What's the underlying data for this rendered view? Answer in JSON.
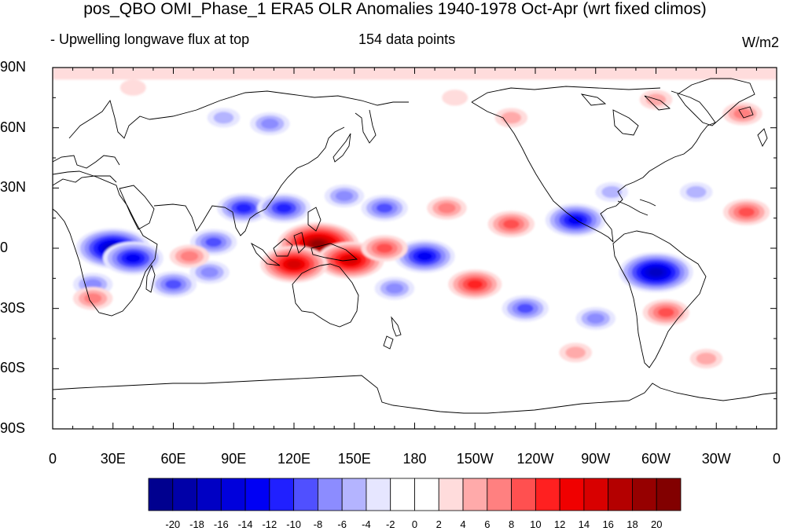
{
  "title": "pos_QBO OMI_Phase_1 ERA5 OLR Anomalies 1940-1978 Oct-Apr (wrt fixed climos)",
  "subtitle_left": "- Upwelling longwave flux at top",
  "subtitle_center": "154 data points",
  "units": "W/m2",
  "map": {
    "projection": "cylindrical-equidistant",
    "lon_range": [
      0,
      360
    ],
    "lat_range": [
      -90,
      90
    ],
    "lat_ticks": [
      {
        "lat": 90,
        "label": "90N"
      },
      {
        "lat": 60,
        "label": "60N"
      },
      {
        "lat": 30,
        "label": "30N"
      },
      {
        "lat": 0,
        "label": "0"
      },
      {
        "lat": -30,
        "label": "30S"
      },
      {
        "lat": -60,
        "label": "60S"
      },
      {
        "lat": -90,
        "label": "90S"
      }
    ],
    "lon_ticks": [
      {
        "lon": 0,
        "label": "0"
      },
      {
        "lon": 30,
        "label": "30E"
      },
      {
        "lon": 60,
        "label": "60E"
      },
      {
        "lon": 90,
        "label": "90E"
      },
      {
        "lon": 120,
        "label": "120E"
      },
      {
        "lon": 150,
        "label": "150E"
      },
      {
        "lon": 180,
        "label": "180"
      },
      {
        "lon": 210,
        "label": "150W"
      },
      {
        "lon": 240,
        "label": "120W"
      },
      {
        "lon": 270,
        "label": "90W"
      },
      {
        "lon": 300,
        "label": "60W"
      },
      {
        "lon": 330,
        "label": "30W"
      },
      {
        "lon": 360,
        "label": "0"
      }
    ]
  },
  "anomaly_features": [
    {
      "lon": 30,
      "lat": 0,
      "value": -16
    },
    {
      "lon": 40,
      "lat": -5,
      "value": -12
    },
    {
      "lon": 95,
      "lat": 20,
      "value": -10
    },
    {
      "lon": 115,
      "lat": 20,
      "value": -10
    },
    {
      "lon": 80,
      "lat": 3,
      "value": -8
    },
    {
      "lon": 78,
      "lat": -12,
      "value": -6
    },
    {
      "lon": 60,
      "lat": -18,
      "value": -8
    },
    {
      "lon": 20,
      "lat": -18,
      "value": -6
    },
    {
      "lon": 108,
      "lat": 62,
      "value": -6
    },
    {
      "lon": 85,
      "lat": 65,
      "value": -4
    },
    {
      "lon": 145,
      "lat": 26,
      "value": -6
    },
    {
      "lon": 165,
      "lat": 20,
      "value": -8
    },
    {
      "lon": 185,
      "lat": -4,
      "value": -12
    },
    {
      "lon": 170,
      "lat": -20,
      "value": -6
    },
    {
      "lon": 260,
      "lat": 14,
      "value": -12
    },
    {
      "lon": 300,
      "lat": -12,
      "value": -16
    },
    {
      "lon": 235,
      "lat": -30,
      "value": -8
    },
    {
      "lon": 270,
      "lat": -35,
      "value": -6
    },
    {
      "lon": 278,
      "lat": 28,
      "value": -4
    },
    {
      "lon": 320,
      "lat": 28,
      "value": -4
    },
    {
      "lon": 132,
      "lat": 2,
      "value": 18
    },
    {
      "lon": 148,
      "lat": -6,
      "value": 14
    },
    {
      "lon": 120,
      "lat": -8,
      "value": 14
    },
    {
      "lon": 165,
      "lat": 0,
      "value": 8
    },
    {
      "lon": 68,
      "lat": -4,
      "value": 6
    },
    {
      "lon": 210,
      "lat": -18,
      "value": 10
    },
    {
      "lon": 228,
      "lat": 12,
      "value": 8
    },
    {
      "lon": 196,
      "lat": 20,
      "value": 6
    },
    {
      "lon": 345,
      "lat": 18,
      "value": 8
    },
    {
      "lon": 305,
      "lat": -32,
      "value": 8
    },
    {
      "lon": 20,
      "lat": -25,
      "value": 6
    },
    {
      "lon": 300,
      "lat": 74,
      "value": 4
    },
    {
      "lon": 343,
      "lat": 67,
      "value": 6
    },
    {
      "lon": 228,
      "lat": 65,
      "value": 4
    },
    {
      "lon": 200,
      "lat": 75,
      "value": 2
    },
    {
      "lon": 40,
      "lat": 80,
      "value": 2
    },
    {
      "lon": 325,
      "lat": -55,
      "value": 4
    },
    {
      "lon": 260,
      "lat": -52,
      "value": 4
    }
  ],
  "colorbar": {
    "labels": [
      "-20",
      "-18",
      "-16",
      "-14",
      "-12",
      "-10",
      "-8",
      "-6",
      "-4",
      "-2",
      "0",
      "2",
      "4",
      "6",
      "8",
      "10",
      "12",
      "14",
      "16",
      "18",
      "20"
    ],
    "colors": [
      "#00008f",
      "#0000a8",
      "#0000c4",
      "#0000dc",
      "#0000f4",
      "#2020ff",
      "#5050ff",
      "#8c8cff",
      "#b4b4ff",
      "#e6e6ff",
      "#ffffff",
      "#ffffff",
      "#ffdcdc",
      "#ffaaaa",
      "#ff8080",
      "#ff5050",
      "#ff2020",
      "#f00000",
      "#d80000",
      "#b40000",
      "#960000",
      "#820000"
    ]
  }
}
